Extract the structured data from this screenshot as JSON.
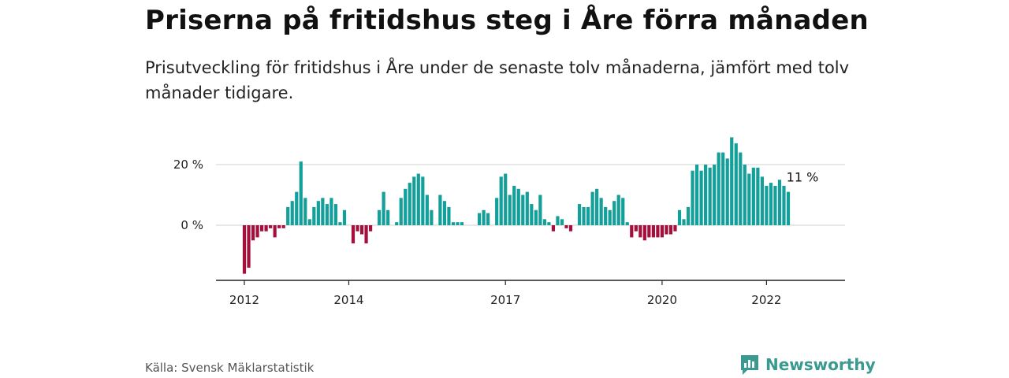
{
  "title": "Priserna på fritidshus steg i Åre förra månaden",
  "subtitle": "Prisutveckling för fritidshus i Åre under de senaste tolv månaderna, jämfört med tolv månader tidigare.",
  "source": "Källa: Svensk Mäklarstatistik",
  "brand": "Newsworthy",
  "colors": {
    "positive": "#14a09a",
    "negative": "#a50f3c",
    "brand": "#3a9a8f",
    "grid": "#d9d9d9",
    "axis": "#222222"
  },
  "chart_data": {
    "type": "bar",
    "start": "2012-01",
    "frequency": "monthly",
    "x_ticks": [
      "2012",
      "2014",
      "2017",
      "2020",
      "2022"
    ],
    "y_ticks": [
      "20 %",
      "0 %"
    ],
    "ylim": [
      -18,
      30
    ],
    "grid": true,
    "last_value_label": "11 %",
    "values": [
      -16,
      -14,
      -5,
      -4,
      -2,
      -2,
      -1,
      -4,
      -1,
      -1,
      6,
      8,
      11,
      21,
      9,
      2,
      6,
      8,
      9,
      7,
      9,
      7,
      1,
      5,
      0,
      -6,
      -2,
      -3,
      -6,
      -2,
      0,
      5,
      11,
      5,
      0,
      1,
      9,
      12,
      14,
      16,
      17,
      16,
      10,
      5,
      0,
      10,
      8,
      6,
      1,
      1,
      1,
      0,
      0,
      0,
      4,
      5,
      4,
      0,
      9,
      16,
      17,
      10,
      13,
      12,
      10,
      11,
      7,
      5,
      10,
      2,
      1,
      -2,
      3,
      2,
      -1,
      -2,
      0,
      7,
      6,
      6,
      11,
      12,
      9,
      6,
      5,
      8,
      10,
      9,
      1,
      -4,
      -2,
      -4,
      -5,
      -4,
      -4,
      -4,
      -4,
      -3,
      -3,
      -2,
      5,
      2,
      6,
      18,
      20,
      18,
      20,
      19,
      20,
      24,
      24,
      22,
      29,
      27,
      24,
      20,
      17,
      19,
      19,
      16,
      13,
      14,
      13,
      15,
      13,
      11
    ]
  }
}
